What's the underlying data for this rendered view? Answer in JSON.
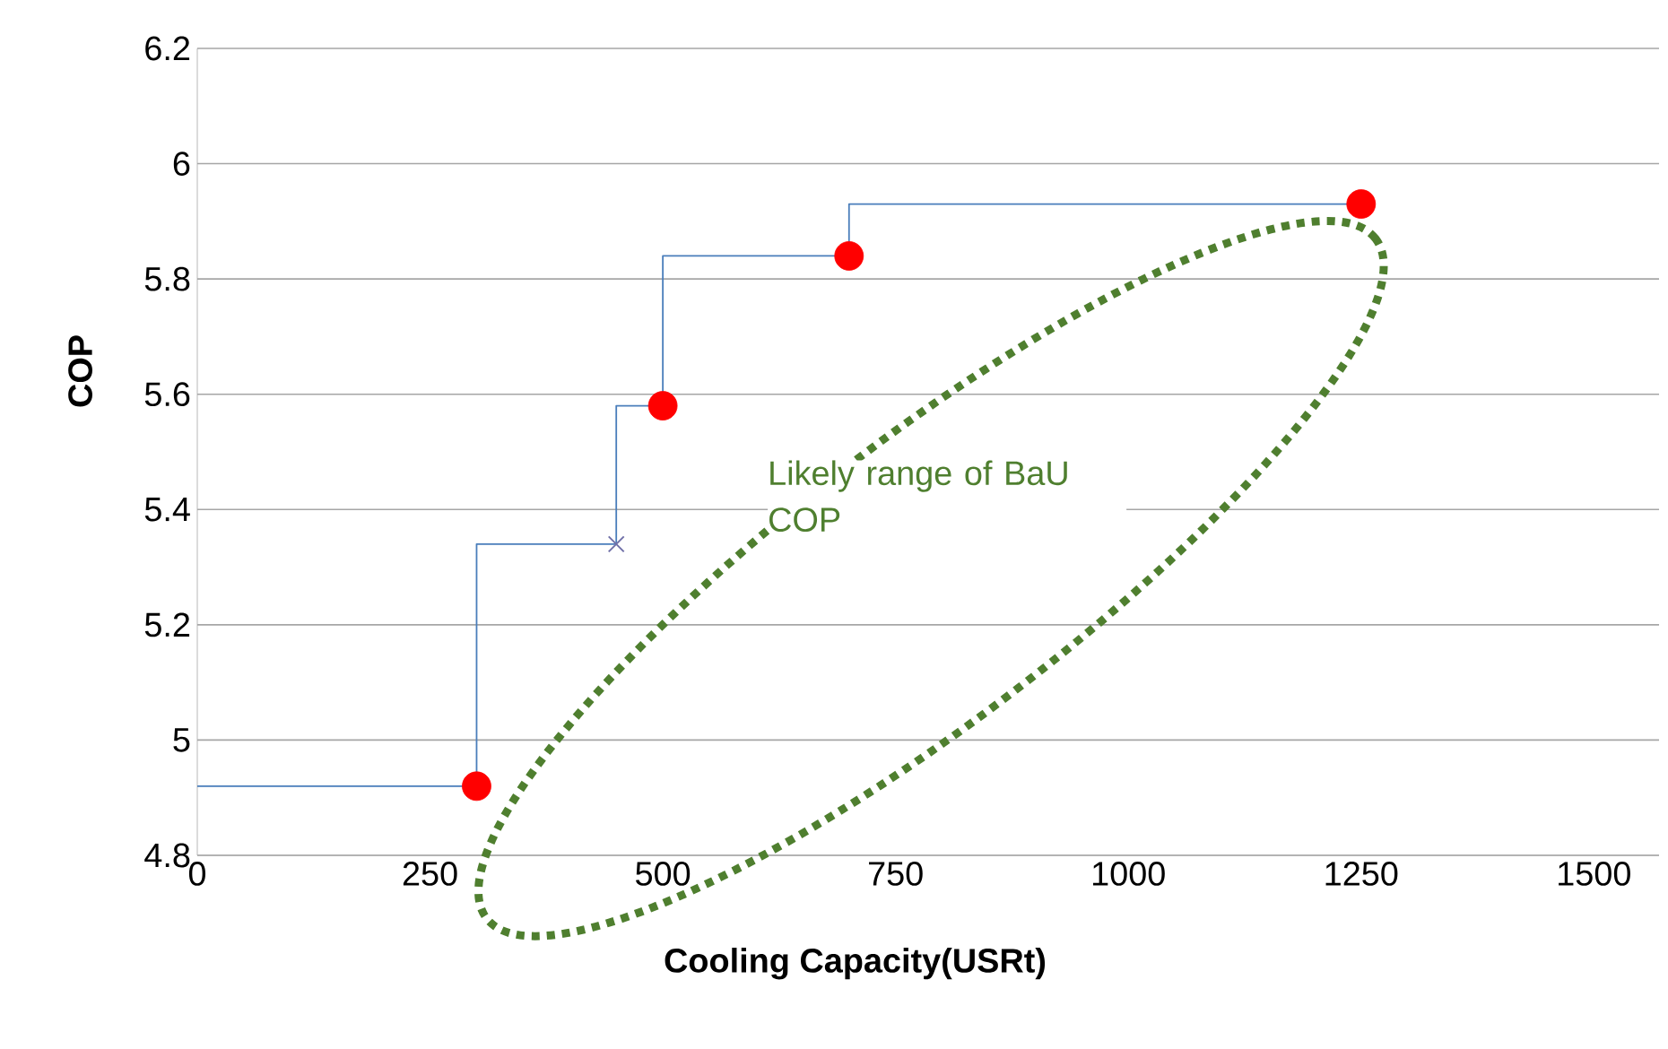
{
  "chart_data": {
    "type": "scatter",
    "xlabel": "Cooling Capacity(USRt)",
    "ylabel": "COP",
    "xlim": [
      0,
      1570
    ],
    "xticks": [
      0,
      250,
      500,
      750,
      1000,
      1250,
      1500
    ],
    "ylim": [
      4.8,
      6.2
    ],
    "yticks": [
      4.8,
      5,
      5.2,
      5.4,
      5.6,
      5.8,
      6,
      6.2
    ],
    "grid": "y",
    "annotations": [
      "Likely range of BaU COP"
    ],
    "series": [
      {
        "type": "step",
        "color": "#4a7ebb",
        "marker": "none",
        "x": [
          0,
          300,
          450,
          500,
          700,
          1250
        ],
        "values": [
          4.92,
          5.34,
          5.58,
          5.84,
          5.93,
          5.93
        ]
      },
      {
        "color": "#ff0000",
        "marker": "circle",
        "x": [
          300,
          500,
          700,
          1250
        ],
        "values": [
          4.92,
          5.58,
          5.84,
          5.93
        ]
      },
      {
        "color": "#7070a8",
        "marker": "cross",
        "x": [
          450
        ],
        "values": [
          5.34
        ]
      }
    ]
  }
}
